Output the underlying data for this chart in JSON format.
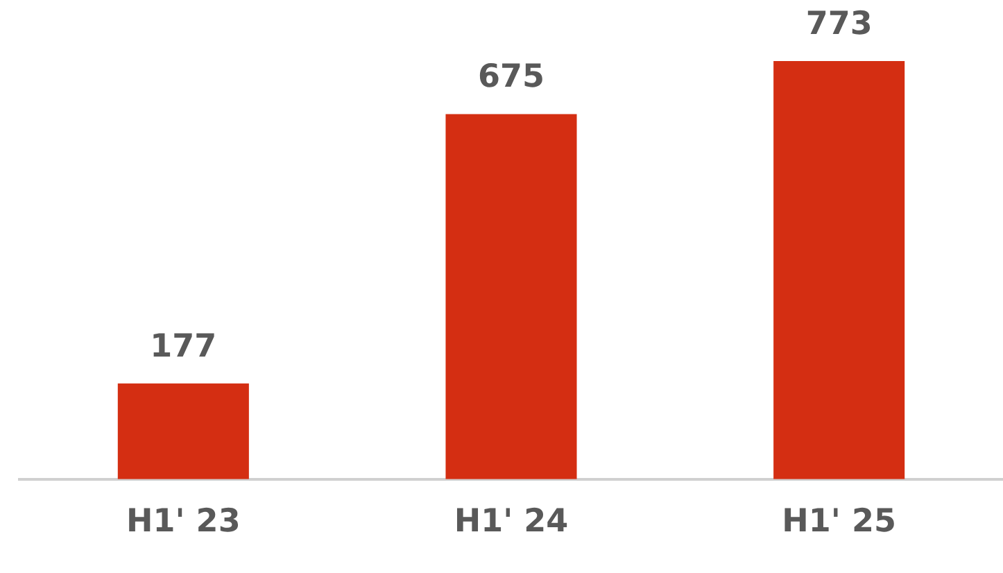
{
  "chart_data": {
    "type": "bar",
    "categories": [
      "H1' 23",
      "H1' 24",
      "H1' 25"
    ],
    "values": [
      177,
      675,
      773
    ],
    "color": "#d42e12",
    "data_labels": true,
    "grid": false,
    "legend": false
  }
}
